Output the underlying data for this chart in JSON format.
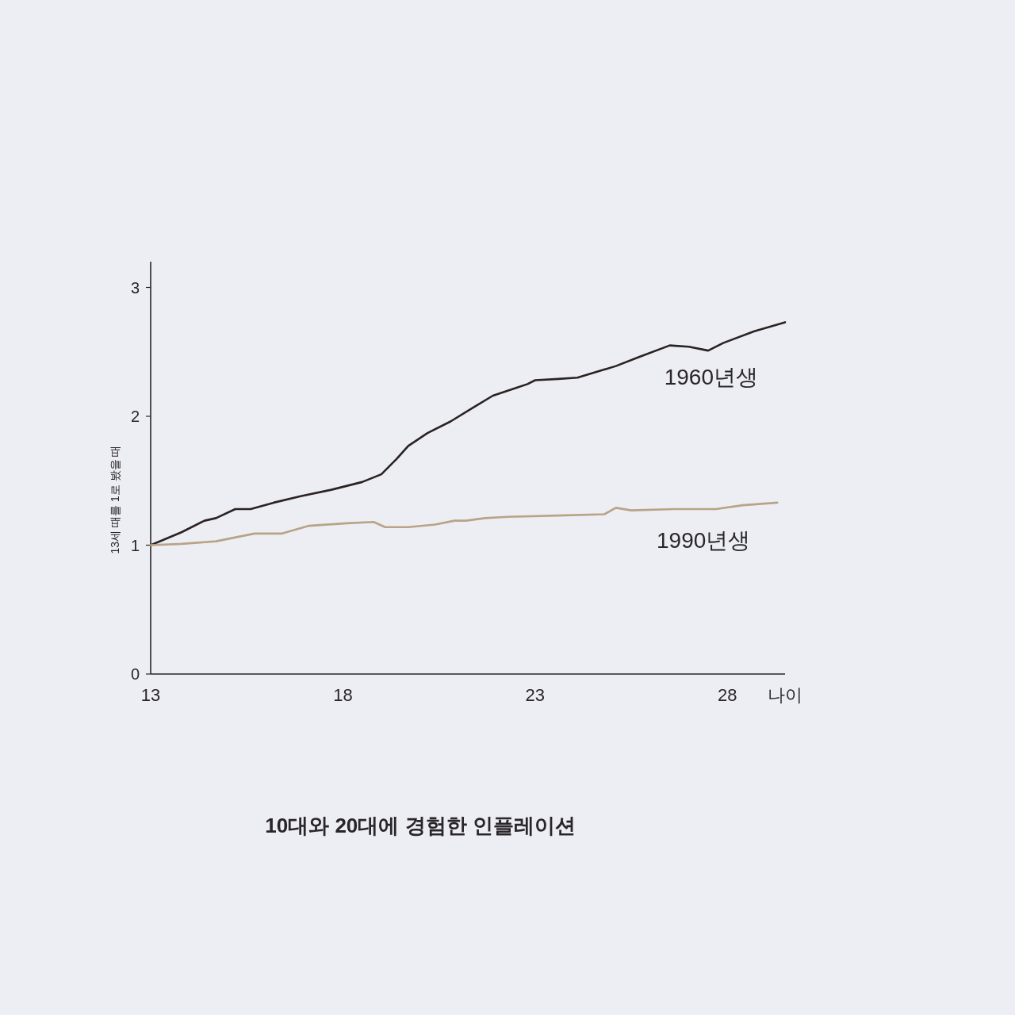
{
  "chart_data": {
    "type": "line",
    "title": "10대와 20대에 경험한 인플레이션",
    "xlabel": "나이",
    "ylabel": "13세 때를 1로 봤을 때",
    "xlim": [
      13,
      29.5
    ],
    "xticks": [
      13,
      18,
      23,
      28
    ],
    "ylim": [
      0,
      3.2
    ],
    "yticks": [
      0,
      1,
      2,
      3
    ],
    "line_style": "solid",
    "series": [
      {
        "name": "1960년생",
        "color": "#2b2222",
        "x": [
          13,
          13.8,
          14.4,
          14.7,
          15.2,
          15.6,
          16.2,
          16.9,
          17.7,
          18.5,
          19.0,
          19.4,
          19.7,
          20.2,
          20.8,
          21.4,
          21.9,
          22.5,
          22.8,
          23.0,
          23.6,
          24.1,
          25.1,
          25.7,
          26.5,
          27.0,
          27.5,
          27.9,
          28.7,
          29.5
        ],
        "values": [
          1.0,
          1.1,
          1.19,
          1.21,
          1.28,
          1.28,
          1.33,
          1.38,
          1.43,
          1.49,
          1.55,
          1.67,
          1.77,
          1.87,
          1.96,
          2.07,
          2.16,
          2.22,
          2.25,
          2.28,
          2.29,
          2.3,
          2.39,
          2.46,
          2.55,
          2.54,
          2.51,
          2.57,
          2.66,
          2.73
        ]
      },
      {
        "name": "1990년생",
        "color": "#b9a386",
        "x": [
          13,
          13.8,
          14.7,
          15.7,
          16.4,
          17.1,
          18.1,
          18.8,
          19.1,
          19.7,
          20.4,
          20.9,
          21.2,
          21.7,
          22.3,
          23.6,
          24.8,
          25.1,
          25.5,
          26.6,
          27.7,
          28.4,
          29.3
        ],
        "values": [
          1.0,
          1.01,
          1.03,
          1.09,
          1.09,
          1.15,
          1.17,
          1.18,
          1.14,
          1.14,
          1.16,
          1.19,
          1.19,
          1.21,
          1.22,
          1.23,
          1.24,
          1.29,
          1.27,
          1.28,
          1.28,
          1.31,
          1.33
        ]
      }
    ]
  }
}
